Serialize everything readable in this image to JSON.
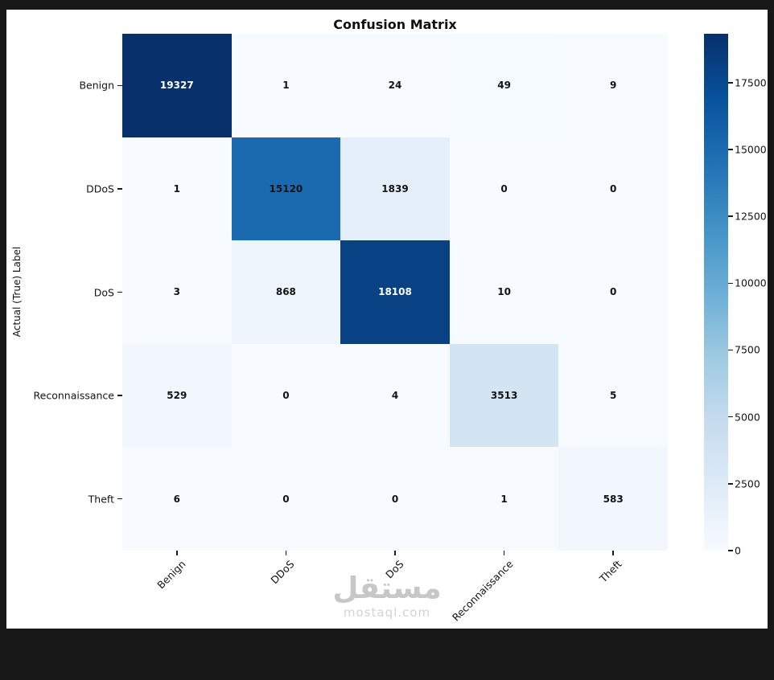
{
  "watermark": {
    "arabic": "مستقل",
    "latin": "mostaql.com"
  },
  "chart_data": {
    "type": "heatmap",
    "title": "Confusion Matrix",
    "xlabel": "",
    "ylabel": "Actual (True) Label",
    "categories": [
      "Benign",
      "DDoS",
      "DoS",
      "Reconnaissance",
      "Theft"
    ],
    "matrix": [
      [
        19327,
        1,
        24,
        49,
        9
      ],
      [
        1,
        15120,
        1839,
        0,
        0
      ],
      [
        3,
        868,
        18108,
        10,
        0
      ],
      [
        529,
        0,
        4,
        3513,
        5
      ],
      [
        6,
        0,
        0,
        1,
        583
      ]
    ],
    "vmin": 0,
    "vmax": 19327,
    "colormap": "Blues",
    "colorbar_ticks": [
      0,
      2500,
      5000,
      7500,
      10000,
      12500,
      15000,
      17500
    ],
    "colormap_anchors": [
      "#f7fbff",
      "#deebf7",
      "#c6dbef",
      "#9ecae1",
      "#6baed6",
      "#4292c6",
      "#2171b5",
      "#08519c",
      "#08306b"
    ],
    "annotation_dark_text": "#131313",
    "annotation_light_text": "#ffffff",
    "legend_position": "right-colorbar",
    "grid": false
  }
}
